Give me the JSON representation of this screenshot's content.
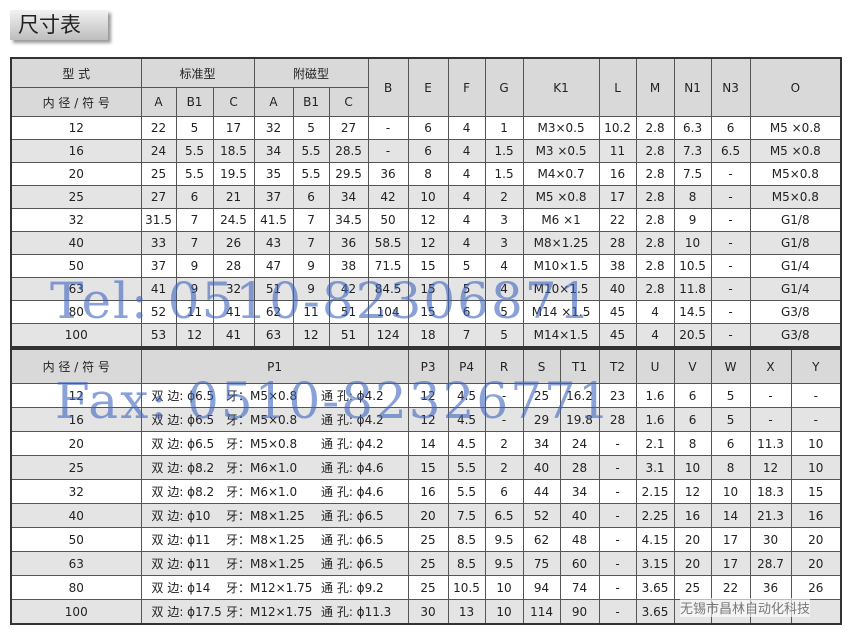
{
  "header": {
    "title": "尺寸表"
  },
  "table1": {
    "header_row1": [
      "型 式",
      "标准型",
      "附磁型",
      "B",
      "E",
      "F",
      "G",
      "K1",
      "L",
      "M",
      "N1",
      "N3",
      "O"
    ],
    "header_row2": [
      "内 径 / 符 号",
      "A",
      "B1",
      "C",
      "A",
      "B1",
      "C"
    ],
    "rows": [
      [
        "12",
        "22",
        "5",
        "17",
        "32",
        "5",
        "27",
        "-",
        "6",
        "4",
        "1",
        "M3×0.5",
        "10.2",
        "2.8",
        "6.3",
        "6",
        "M5 ×0.8"
      ],
      [
        "16",
        "24",
        "5.5",
        "18.5",
        "34",
        "5.5",
        "28.5",
        "-",
        "6",
        "4",
        "1.5",
        "M3 ×0.5",
        "11",
        "2.8",
        "7.3",
        "6.5",
        "M5 ×0.8"
      ],
      [
        "20",
        "25",
        "5.5",
        "19.5",
        "35",
        "5.5",
        "29.5",
        "36",
        "8",
        "4",
        "1.5",
        "M4×0.7",
        "16",
        "2.8",
        "7.5",
        "-",
        "M5×0.8"
      ],
      [
        "25",
        "27",
        "6",
        "21",
        "37",
        "6",
        "34",
        "42",
        "10",
        "4",
        "2",
        "M5 ×0.8",
        "17",
        "2.8",
        "8",
        "-",
        "M5×0.8"
      ],
      [
        "32",
        "31.5",
        "7",
        "24.5",
        "41.5",
        "7",
        "34.5",
        "50",
        "12",
        "4",
        "3",
        "M6 ×1",
        "22",
        "2.8",
        "9",
        "-",
        "G1/8"
      ],
      [
        "40",
        "33",
        "7",
        "26",
        "43",
        "7",
        "36",
        "58.5",
        "12",
        "4",
        "3",
        "M8×1.25",
        "28",
        "2.8",
        "10",
        "-",
        "G1/8"
      ],
      [
        "50",
        "37",
        "9",
        "28",
        "47",
        "9",
        "38",
        "71.5",
        "15",
        "5",
        "4",
        "M10×1.5",
        "38",
        "2.8",
        "10.5",
        "-",
        "G1/4"
      ],
      [
        "63",
        "41",
        "9",
        "32",
        "51",
        "9",
        "42",
        "84.5",
        "15",
        "5",
        "4",
        "M10×1.5",
        "40",
        "2.8",
        "11.8",
        "-",
        "G1/4"
      ],
      [
        "80",
        "52",
        "11",
        "41",
        "62",
        "11",
        "51",
        "104",
        "15",
        "6",
        "5",
        "M14 ×1.5",
        "45",
        "4",
        "14.5",
        "-",
        "G3/8"
      ],
      [
        "100",
        "53",
        "12",
        "41",
        "63",
        "12",
        "51",
        "124",
        "18",
        "7",
        "5",
        "M14×1.5",
        "45",
        "4",
        "20.5",
        "-",
        "G3/8"
      ]
    ]
  },
  "table2": {
    "header": [
      "内 径 / 符 号",
      "P1",
      "P3",
      "P4",
      "R",
      "S",
      "T1",
      "T2",
      "U",
      "V",
      "W",
      "X",
      "Y"
    ],
    "rows": [
      [
        "12",
        "双 边: ϕ6.5",
        "牙：M5×0.8",
        "通 孔: ϕ4.2",
        "12",
        "4.5",
        "-",
        "25",
        "16.2",
        "23",
        "1.6",
        "6",
        "5",
        "-",
        "-"
      ],
      [
        "16",
        "双 边: ϕ6.5",
        "牙：M5×0.8",
        "通 孔: ϕ4.2",
        "12",
        "4.5",
        "-",
        "29",
        "19.8",
        "28",
        "1.6",
        "6",
        "5",
        "-",
        "-"
      ],
      [
        "20",
        "双 边: ϕ6.5",
        "牙：M5×0.8",
        "通 孔: ϕ4.2",
        "14",
        "4.5",
        "2",
        "34",
        "24",
        "-",
        "2.1",
        "8",
        "6",
        "11.3",
        "10"
      ],
      [
        "25",
        "双 边: ϕ8.2",
        "牙：M6×1.0",
        "通 孔: ϕ4.6",
        "15",
        "5.5",
        "2",
        "40",
        "28",
        "-",
        "3.1",
        "10",
        "8",
        "12",
        "10"
      ],
      [
        "32",
        "双 边: ϕ8.2",
        "牙：M6×1.0",
        "通 孔: ϕ4.6",
        "16",
        "5.5",
        "6",
        "44",
        "34",
        "-",
        "2.15",
        "12",
        "10",
        "18.3",
        "15"
      ],
      [
        "40",
        "双 边: ϕ10",
        "牙：M8×1.25",
        "通 孔: ϕ6.5",
        "20",
        "7.5",
        "6.5",
        "52",
        "40",
        "-",
        "2.25",
        "16",
        "14",
        "21.3",
        "16"
      ],
      [
        "50",
        "双 边: ϕ11",
        "牙：M8×1.25",
        "通 孔: ϕ6.5",
        "25",
        "8.5",
        "9.5",
        "62",
        "48",
        "-",
        "4.15",
        "20",
        "17",
        "30",
        "20"
      ],
      [
        "63",
        "双 边: ϕ11",
        "牙：M8×1.25",
        "通 孔: ϕ6.5",
        "25",
        "8.5",
        "9.5",
        "75",
        "60",
        "-",
        "3.15",
        "20",
        "17",
        "28.7",
        "20"
      ],
      [
        "80",
        "双 边: ϕ14",
        "牙：M12×1.75",
        "通 孔: ϕ9.2",
        "25",
        "10.5",
        "10",
        "94",
        "74",
        "-",
        "3.65",
        "25",
        "22",
        "36",
        "26"
      ],
      [
        "100",
        "双 边: ϕ17.5",
        "牙：M12×1.75",
        "通 孔: ϕ11.3",
        "30",
        "13",
        "10",
        "114",
        "90",
        "-",
        "3.65"
      ]
    ]
  },
  "watermarks": [
    "Tel: 0510-82306871",
    "Fax: 0510-82326771",
    "无锡市昌林自动化科技"
  ]
}
